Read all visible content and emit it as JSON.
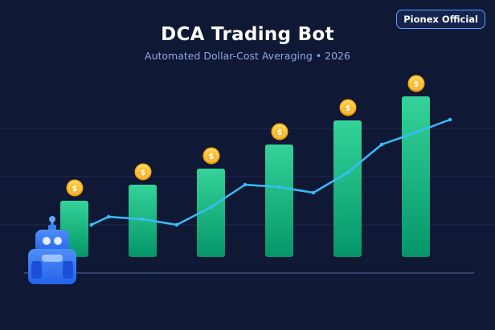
{
  "header": {
    "title": "DCA Trading Bot",
    "subtitle": "Automated Dollar-Cost Averaging • 2026",
    "brand": "Pionex Official"
  },
  "colors": {
    "bar_top": "#34d399",
    "bar_bottom": "#059669",
    "line": "#38bdf8",
    "coin": "#fbbf24",
    "robot": "#3b82f6"
  },
  "icons": [
    "coin-icon",
    "robot-icon"
  ],
  "chart_data": {
    "type": "bar",
    "bars": {
      "values": [
        70,
        90,
        110,
        140,
        170,
        200
      ]
    },
    "line": {
      "x": [
        0.25,
        0.5,
        1.0,
        1.5,
        2.0,
        2.5,
        3.0,
        3.5,
        4.0,
        4.5,
        5.0,
        5.5
      ],
      "values": [
        40,
        50,
        47,
        40,
        62,
        90,
        87,
        80,
        105,
        140,
        155,
        171
      ]
    },
    "coin_label": "$",
    "ylim": [
      0,
      260
    ],
    "grid": true,
    "legend": "none"
  }
}
